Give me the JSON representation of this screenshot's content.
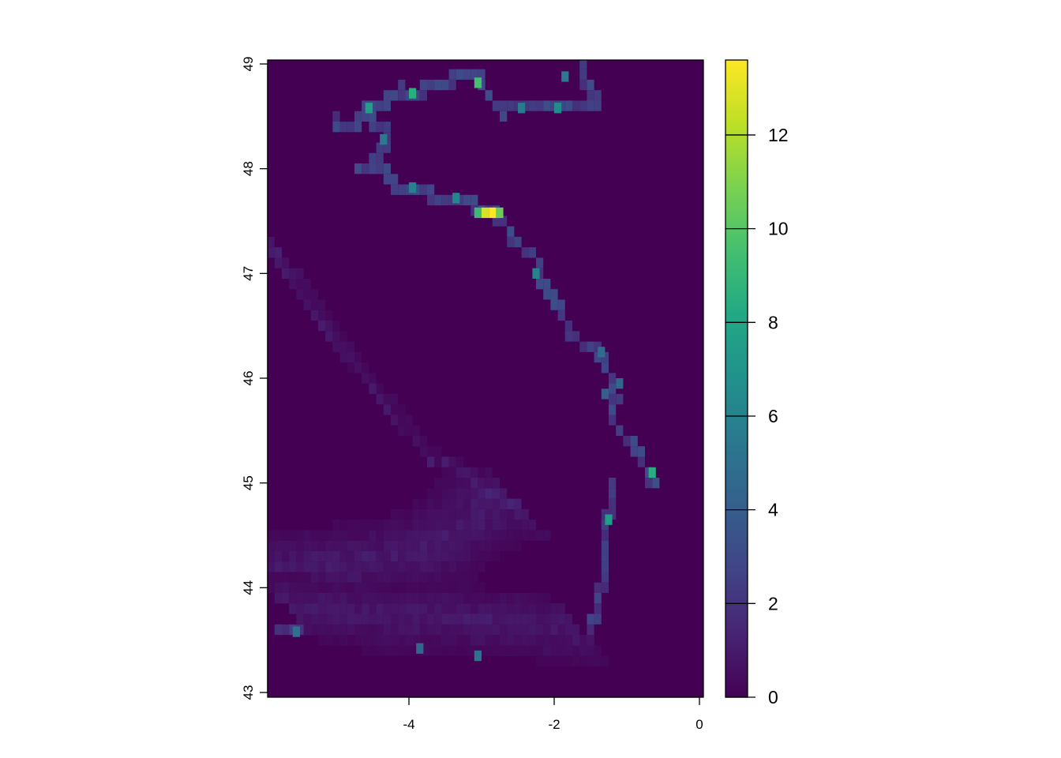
{
  "chart_data": {
    "type": "heatmap",
    "title": "",
    "xlabel": "",
    "ylabel": "",
    "xlim": [
      -5.85,
      0.1
    ],
    "ylim": [
      43.0,
      49.0
    ],
    "grid": false,
    "x_ticks": [
      -4,
      -2,
      0
    ],
    "x_tick_labels": [
      "-4",
      "-2",
      "0"
    ],
    "y_ticks": [
      43,
      44,
      45,
      46,
      47,
      48,
      49
    ],
    "y_tick_labels": [
      "43",
      "44",
      "45",
      "46",
      "47",
      "48",
      "49"
    ],
    "colorscale": "viridis",
    "colorbar": {
      "range": [
        0,
        13.6
      ],
      "ticks": [
        0,
        2,
        4,
        6,
        8,
        10,
        12
      ],
      "tick_labels": [
        "0",
        "2",
        "4",
        "6",
        "8",
        "10",
        "12"
      ],
      "placement": "right"
    },
    "background_value": 0,
    "cell_size_deg": [
      0.1,
      0.1
    ],
    "features": [
      {
        "kind": "coastline-band",
        "value": 2.5,
        "path": [
          [
            -5.0,
            48.45
          ],
          [
            -4.7,
            48.4
          ],
          [
            -4.65,
            48.55
          ],
          [
            -4.5,
            48.6
          ],
          [
            -4.3,
            48.65
          ],
          [
            -4.1,
            48.75
          ],
          [
            -3.9,
            48.72
          ],
          [
            -3.6,
            48.8
          ],
          [
            -3.4,
            48.85
          ],
          [
            -3.05,
            48.85
          ],
          [
            -2.9,
            48.7
          ],
          [
            -2.7,
            48.55
          ],
          [
            -2.5,
            48.62
          ],
          [
            -2.2,
            48.62
          ],
          [
            -2.0,
            48.58
          ],
          [
            -1.7,
            48.65
          ],
          [
            -1.4,
            48.65
          ],
          [
            -1.55,
            48.8
          ],
          [
            -1.6,
            48.98
          ]
        ]
      },
      {
        "kind": "coastline-band",
        "value": 2.5,
        "path": [
          [
            -4.65,
            48.55
          ],
          [
            -4.45,
            48.42
          ],
          [
            -4.35,
            48.35
          ],
          [
            -4.3,
            48.25
          ],
          [
            -4.55,
            48.05
          ],
          [
            -4.7,
            48.0
          ],
          [
            -4.45,
            48.1
          ],
          [
            -4.3,
            47.95
          ],
          [
            -4.2,
            47.85
          ],
          [
            -3.95,
            47.8
          ],
          [
            -3.7,
            47.75
          ],
          [
            -3.5,
            47.7
          ],
          [
            -3.3,
            47.72
          ],
          [
            -3.1,
            47.65
          ],
          [
            -2.9,
            47.58
          ],
          [
            -2.7,
            47.52
          ],
          [
            -2.6,
            47.4
          ],
          [
            -2.55,
            47.28
          ],
          [
            -2.3,
            47.2
          ],
          [
            -2.2,
            47.05
          ],
          [
            -2.15,
            46.88
          ],
          [
            -2.0,
            46.72
          ],
          [
            -1.9,
            46.6
          ],
          [
            -1.8,
            46.45
          ],
          [
            -1.6,
            46.3
          ],
          [
            -1.4,
            46.25
          ],
          [
            -1.3,
            46.1
          ],
          [
            -1.2,
            45.95
          ],
          [
            -1.15,
            45.8
          ],
          [
            -1.25,
            45.65
          ],
          [
            -1.1,
            45.5
          ],
          [
            -0.9,
            45.35
          ],
          [
            -0.75,
            45.15
          ],
          [
            -0.65,
            45.0
          ]
        ]
      },
      {
        "kind": "coastline-band",
        "value": 2.2,
        "path": [
          [
            -1.2,
            45.0
          ],
          [
            -1.25,
            44.7
          ],
          [
            -1.3,
            44.4
          ],
          [
            -1.35,
            44.05
          ],
          [
            -1.45,
            43.7
          ],
          [
            -1.55,
            43.5
          ],
          [
            -1.8,
            43.4
          ],
          [
            -2.1,
            43.35
          ],
          [
            -2.5,
            43.4
          ],
          [
            -2.9,
            43.45
          ],
          [
            -3.2,
            43.45
          ],
          [
            -3.5,
            43.45
          ],
          [
            -3.8,
            43.47
          ],
          [
            -4.2,
            43.45
          ],
          [
            -4.6,
            43.5
          ],
          [
            -5.0,
            43.55
          ],
          [
            -5.4,
            43.58
          ],
          [
            -5.85,
            43.58
          ]
        ]
      },
      {
        "kind": "hotspot",
        "cells": [
          {
            "x": -2.85,
            "y": 47.58,
            "value": 13.6
          },
          {
            "x": -2.95,
            "y": 47.58,
            "value": 12.8
          },
          {
            "x": -2.75,
            "y": 47.58,
            "value": 10.5
          },
          {
            "x": -3.05,
            "y": 47.58,
            "value": 9.2
          },
          {
            "x": -3.05,
            "y": 48.82,
            "value": 9.5
          },
          {
            "x": -3.95,
            "y": 48.72,
            "value": 8.5
          },
          {
            "x": -4.55,
            "y": 48.58,
            "value": 7.5
          },
          {
            "x": -0.65,
            "y": 45.1,
            "value": 8.5
          },
          {
            "x": -1.25,
            "y": 44.65,
            "value": 7.5
          },
          {
            "x": -1.95,
            "y": 48.58,
            "value": 6.5
          },
          {
            "x": -4.35,
            "y": 48.28,
            "value": 5.5
          },
          {
            "x": -3.95,
            "y": 47.82,
            "value": 5.8
          },
          {
            "x": -3.35,
            "y": 47.72,
            "value": 6.2
          },
          {
            "x": -2.25,
            "y": 47.0,
            "value": 6.0
          },
          {
            "x": -2.45,
            "y": 48.58,
            "value": 5.5
          },
          {
            "x": -3.05,
            "y": 43.35,
            "value": 5.2
          },
          {
            "x": -5.55,
            "y": 43.58,
            "value": 5.0
          },
          {
            "x": -3.85,
            "y": 43.42,
            "value": 4.5
          },
          {
            "x": -1.85,
            "y": 48.88,
            "value": 5.5
          },
          {
            "x": -1.35,
            "y": 46.25,
            "value": 4.8
          },
          {
            "x": -1.1,
            "y": 45.95,
            "value": 4.5
          },
          {
            "x": -1.3,
            "y": 45.85,
            "value": 4.0
          }
        ]
      },
      {
        "kind": "shelf-gradient",
        "value": 1.1,
        "path": [
          [
            -5.85,
            47.2
          ],
          [
            -5.4,
            46.8
          ],
          [
            -4.9,
            46.3
          ],
          [
            -4.5,
            45.95
          ],
          [
            -4.1,
            45.6
          ],
          [
            -3.7,
            45.25
          ],
          [
            -3.3,
            45.0
          ],
          [
            -2.9,
            44.85
          ],
          [
            -2.5,
            44.75
          ]
        ]
      },
      {
        "kind": "shelf-gradient",
        "value": 0.9,
        "path": [
          [
            -5.85,
            44.15
          ],
          [
            -5.2,
            44.2
          ],
          [
            -4.6,
            44.25
          ],
          [
            -4.0,
            44.3
          ],
          [
            -3.5,
            44.45
          ],
          [
            -3.2,
            44.65
          ],
          [
            -2.9,
            44.75
          ]
        ]
      },
      {
        "kind": "shelf-gradient",
        "value": 0.9,
        "path": [
          [
            -5.6,
            43.8
          ],
          [
            -5.0,
            43.75
          ],
          [
            -4.4,
            43.72
          ],
          [
            -3.8,
            43.7
          ],
          [
            -3.2,
            43.68
          ],
          [
            -2.6,
            43.65
          ],
          [
            -2.0,
            43.62
          ],
          [
            -1.7,
            43.6
          ]
        ]
      }
    ]
  }
}
